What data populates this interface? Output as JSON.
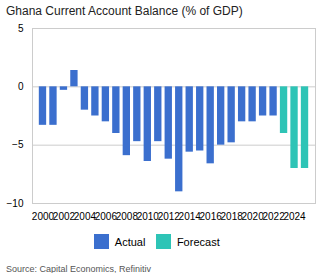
{
  "chart_data": {
    "type": "bar",
    "title": "Ghana Current Account Balance (% of GDP)",
    "source": "Source: Capital Economics, Refinitiv",
    "x": [
      2000,
      2001,
      2002,
      2003,
      2004,
      2005,
      2006,
      2007,
      2008,
      2009,
      2010,
      2011,
      2012,
      2013,
      2014,
      2015,
      2016,
      2017,
      2018,
      2019,
      2020,
      2021,
      2022,
      2023,
      2024,
      2025
    ],
    "series": [
      {
        "name": "Actual",
        "color": "#3b6fce",
        "values": [
          -3.3,
          -3.3,
          -0.3,
          1.4,
          -2.0,
          -2.5,
          -3.0,
          -4.0,
          -5.9,
          -4.7,
          -6.4,
          -4.7,
          -6.2,
          -9.0,
          -5.6,
          -5.5,
          -6.6,
          -5.0,
          -4.8,
          -3.0,
          -3.0,
          -2.5,
          -2.5,
          null,
          null,
          null
        ]
      },
      {
        "name": "Forecast",
        "color": "#2ec4b6",
        "values": [
          null,
          null,
          null,
          null,
          null,
          null,
          null,
          null,
          null,
          null,
          null,
          null,
          null,
          null,
          null,
          null,
          null,
          null,
          null,
          null,
          null,
          null,
          null,
          -4.0,
          -7.0,
          -7.0
        ]
      }
    ],
    "xlim": [
      1999,
      2026
    ],
    "xticks": [
      2000,
      2002,
      2004,
      2006,
      2008,
      2010,
      2012,
      2014,
      2016,
      2018,
      2020,
      2022,
      2024
    ],
    "ylim": [
      -10,
      5
    ],
    "yticks": [
      -10,
      -5,
      0,
      5
    ],
    "grid": true,
    "legend": "bottom"
  }
}
